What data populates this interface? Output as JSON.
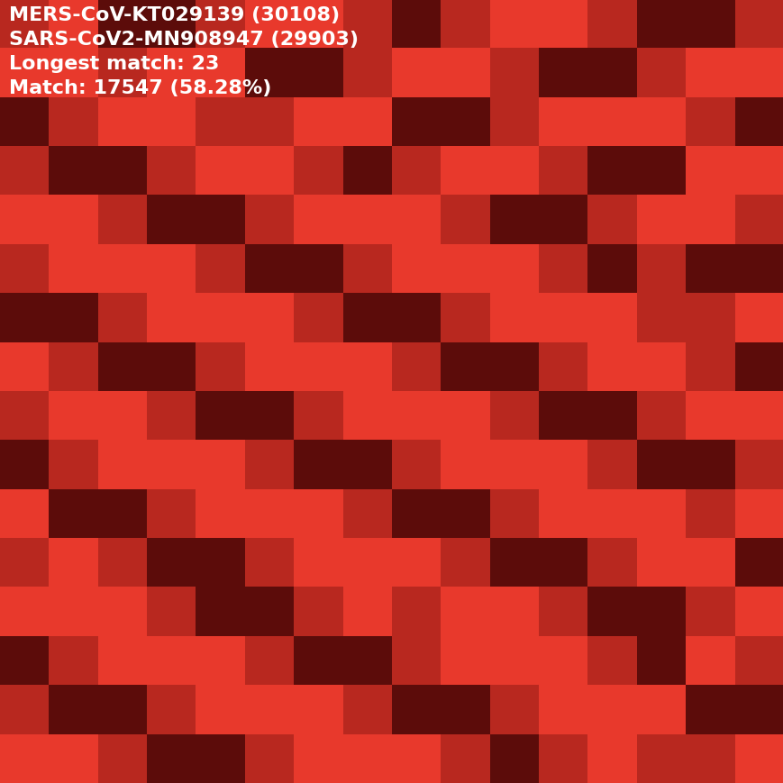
{
  "chart_data": {
    "type": "heatmap",
    "annotations": [
      "MERS-CoV-KT029139 (30108)",
      "SARS-CoV2-MN908947 (29903)",
      "Longest match: 23",
      "Match: 17547 (58.28%)"
    ],
    "colors": [
      "#5c0c0a",
      "#b8281f",
      "#e8392c"
    ],
    "tick_labels": false,
    "cells": [
      [
        1,
        2,
        0,
        0,
        1,
        2,
        2,
        1,
        0,
        1,
        2,
        2,
        1,
        0,
        0,
        1
      ],
      [
        2,
        2,
        1,
        2,
        2,
        0,
        0,
        1,
        2,
        2,
        1,
        0,
        0,
        1,
        2,
        2
      ],
      [
        0,
        1,
        2,
        2,
        1,
        1,
        2,
        2,
        0,
        0,
        1,
        2,
        2,
        2,
        1,
        0
      ],
      [
        1,
        0,
        0,
        1,
        2,
        2,
        1,
        0,
        1,
        2,
        2,
        1,
        0,
        0,
        2,
        2
      ],
      [
        2,
        2,
        1,
        0,
        0,
        1,
        2,
        2,
        2,
        1,
        0,
        0,
        1,
        2,
        2,
        1
      ],
      [
        1,
        2,
        2,
        2,
        1,
        0,
        0,
        1,
        2,
        2,
        2,
        1,
        0,
        1,
        0,
        0
      ],
      [
        0,
        0,
        1,
        2,
        2,
        2,
        1,
        0,
        0,
        1,
        2,
        2,
        2,
        1,
        1,
        2
      ],
      [
        2,
        1,
        0,
        0,
        1,
        2,
        2,
        2,
        1,
        0,
        0,
        1,
        2,
        2,
        1,
        0
      ],
      [
        1,
        2,
        2,
        1,
        0,
        0,
        1,
        2,
        2,
        2,
        1,
        0,
        0,
        1,
        2,
        2
      ],
      [
        0,
        1,
        2,
        2,
        2,
        1,
        0,
        0,
        1,
        2,
        2,
        2,
        1,
        0,
        0,
        1
      ],
      [
        2,
        0,
        0,
        1,
        2,
        2,
        2,
        1,
        0,
        0,
        1,
        2,
        2,
        2,
        1,
        2
      ],
      [
        1,
        2,
        1,
        0,
        0,
        1,
        2,
        2,
        2,
        1,
        0,
        0,
        1,
        2,
        2,
        0
      ],
      [
        2,
        2,
        2,
        1,
        0,
        0,
        1,
        2,
        1,
        2,
        2,
        1,
        0,
        0,
        1,
        2
      ],
      [
        0,
        1,
        2,
        2,
        2,
        1,
        0,
        0,
        1,
        2,
        2,
        2,
        1,
        0,
        2,
        1
      ],
      [
        1,
        0,
        0,
        1,
        2,
        2,
        2,
        1,
        0,
        0,
        1,
        2,
        2,
        2,
        0,
        0
      ],
      [
        2,
        2,
        1,
        0,
        0,
        1,
        2,
        2,
        2,
        1,
        0,
        1,
        2,
        1,
        1,
        2
      ]
    ]
  }
}
